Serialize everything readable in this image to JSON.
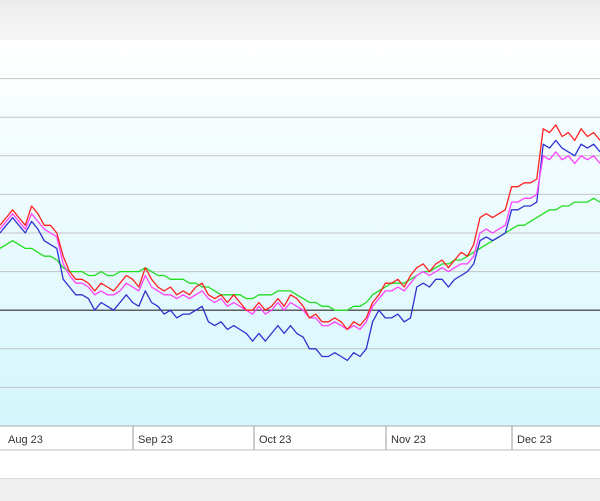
{
  "chart_data": {
    "type": "line",
    "title": "",
    "xlabel": "",
    "ylabel": "",
    "x_tick_labels": [
      "Aug 23",
      "Sep 23",
      "Oct 23",
      "Nov 23",
      "Dec 23"
    ],
    "y_range": [
      0,
      100
    ],
    "reference_line": 30,
    "grid": true,
    "colors": {
      "red": "#ff2020",
      "magenta": "#ff40ff",
      "blue": "#3030d0",
      "green": "#22dd22",
      "background_top": "#ffffff",
      "background_bottom": "#d4f6fc"
    },
    "series": [
      {
        "color": "#ff2020",
        "values": [
          52,
          54,
          56,
          54,
          52,
          57,
          55,
          52,
          52,
          50,
          44,
          40,
          38,
          38,
          37,
          35,
          37,
          36,
          35,
          37,
          39,
          38,
          36,
          41,
          38,
          36,
          35,
          36,
          34,
          35,
          34,
          36,
          37,
          34,
          33,
          34,
          32,
          34,
          32,
          30,
          30,
          32,
          30,
          31,
          33,
          31,
          34,
          33,
          31,
          28,
          29,
          27,
          27,
          28,
          27,
          25,
          27,
          26,
          28,
          32,
          34,
          37,
          37,
          38,
          36,
          39,
          41,
          42,
          40,
          42,
          43,
          41,
          43,
          45,
          44,
          47,
          54,
          55,
          54,
          55,
          56,
          62,
          62,
          63,
          63,
          64,
          77,
          76,
          78,
          75,
          76,
          74,
          77,
          75,
          76,
          74
        ]
      },
      {
        "color": "#ff40ff",
        "values": [
          51,
          53,
          55,
          53,
          51,
          55,
          53,
          51,
          50,
          49,
          42,
          39,
          37,
          37,
          36,
          34,
          35,
          34,
          34,
          35,
          37,
          36,
          35,
          39,
          36,
          35,
          34,
          34,
          33,
          34,
          33,
          34,
          35,
          33,
          32,
          33,
          31,
          32,
          31,
          30,
          29,
          31,
          29,
          30,
          32,
          30,
          32,
          31,
          30,
          28,
          28,
          26,
          26,
          27,
          26,
          25,
          26,
          25,
          27,
          31,
          33,
          35,
          35,
          36,
          35,
          37,
          39,
          40,
          39,
          40,
          41,
          40,
          41,
          42,
          42,
          44,
          50,
          51,
          50,
          51,
          52,
          58,
          58,
          59,
          59,
          60,
          70,
          69,
          71,
          69,
          70,
          68,
          70,
          69,
          70,
          68
        ]
      },
      {
        "color": "#3030d0",
        "values": [
          50,
          52,
          54,
          52,
          50,
          53,
          51,
          48,
          47,
          46,
          38,
          36,
          34,
          34,
          33,
          30,
          32,
          31,
          30,
          32,
          34,
          32,
          31,
          35,
          32,
          31,
          29,
          30,
          28,
          29,
          29,
          30,
          31,
          27,
          26,
          27,
          25,
          26,
          25,
          24,
          22,
          24,
          22,
          24,
          26,
          24,
          26,
          24,
          23,
          20,
          20,
          18,
          18,
          19,
          18,
          17,
          19,
          18,
          20,
          27,
          30,
          28,
          28,
          29,
          27,
          28,
          36,
          37,
          36,
          38,
          38,
          36,
          38,
          39,
          40,
          42,
          48,
          49,
          48,
          49,
          50,
          56,
          56,
          57,
          57,
          58,
          73,
          72,
          74,
          72,
          71,
          70,
          73,
          72,
          73,
          71
        ]
      },
      {
        "color": "#22dd22",
        "values": [
          46,
          47,
          48,
          47,
          46,
          46,
          45,
          44,
          44,
          43,
          41,
          40,
          40,
          40,
          39,
          39,
          40,
          39,
          39,
          40,
          40,
          40,
          40,
          41,
          40,
          39,
          39,
          38,
          38,
          38,
          37,
          37,
          36,
          36,
          35,
          34,
          34,
          34,
          34,
          33,
          33,
          34,
          34,
          34,
          35,
          35,
          35,
          34,
          33,
          32,
          32,
          31,
          31,
          30,
          30,
          30,
          31,
          31,
          32,
          34,
          35,
          36,
          37,
          37,
          37,
          38,
          39,
          40,
          40,
          41,
          42,
          42,
          43,
          43,
          44,
          45,
          46,
          47,
          48,
          49,
          50,
          51,
          52,
          52,
          53,
          54,
          55,
          56,
          56,
          57,
          57,
          58,
          58,
          58,
          59,
          58
        ]
      }
    ]
  }
}
